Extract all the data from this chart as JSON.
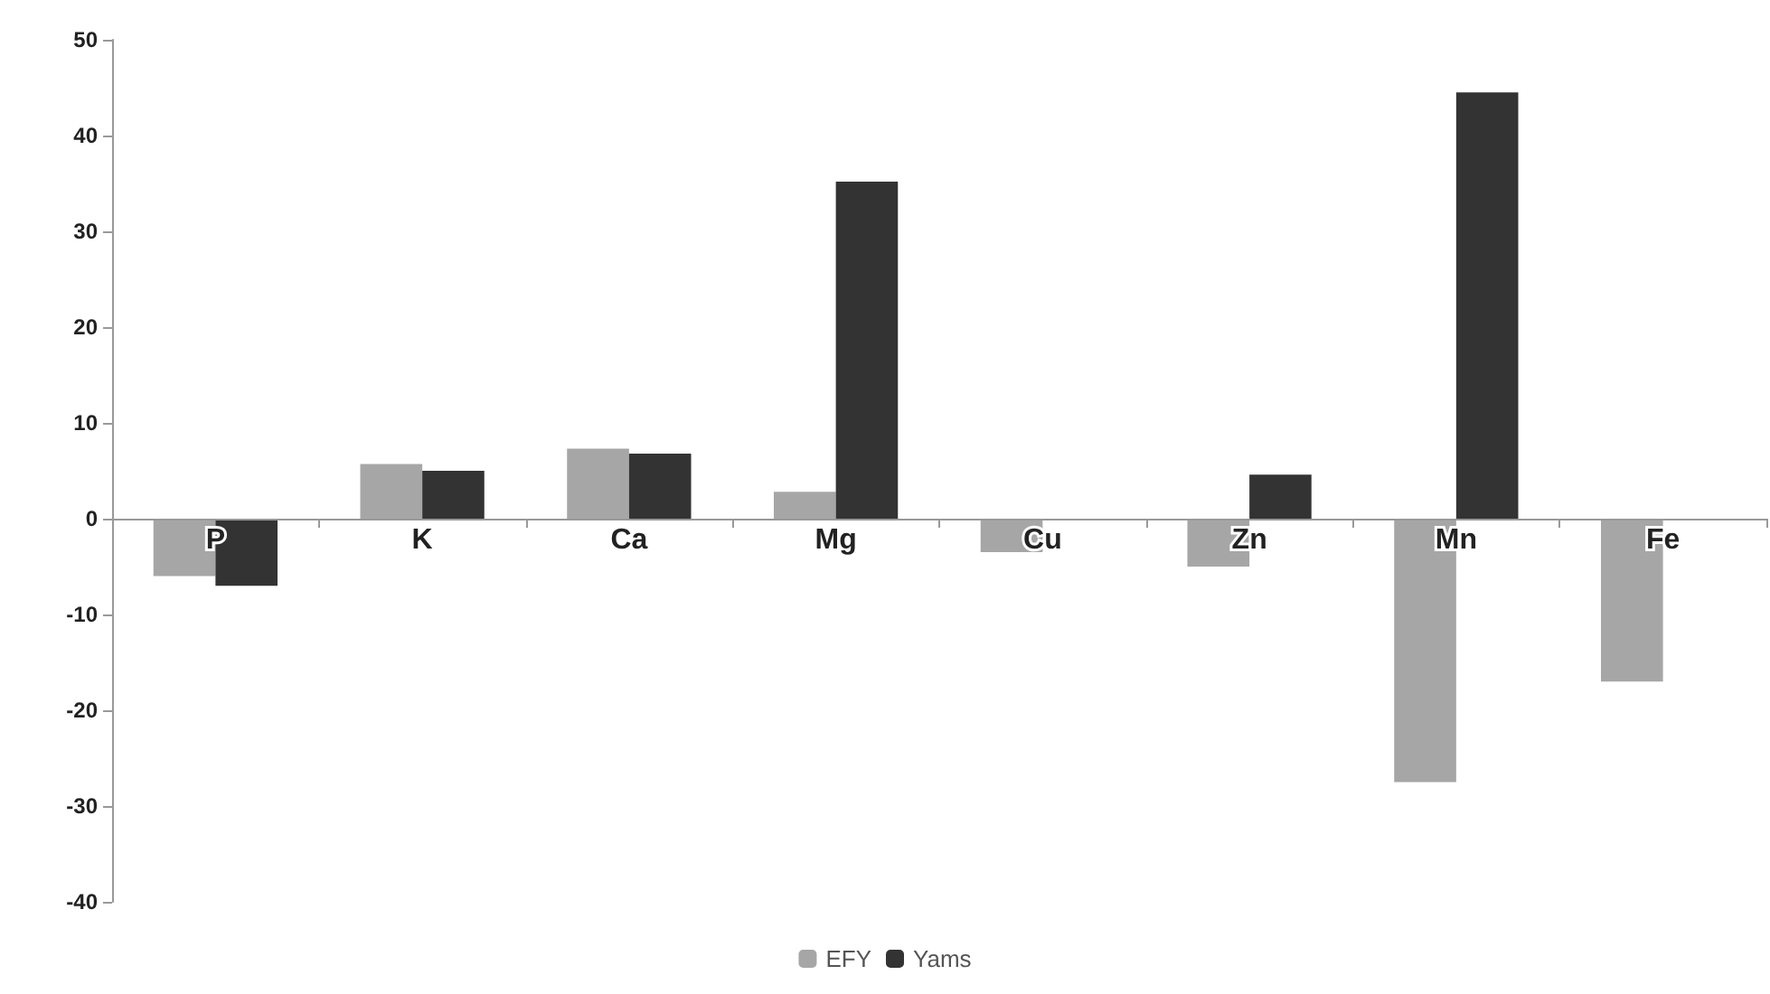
{
  "chart_data": {
    "type": "bar",
    "categories": [
      "P",
      "K",
      "Ca",
      "Mg",
      "Cu",
      "Zn",
      "Mn",
      "Fe"
    ],
    "series": [
      {
        "name": "EFY",
        "color": "#a6a6a6",
        "values": [
          -6,
          5.7,
          7.3,
          2.8,
          -3.5,
          -5,
          -27.5,
          -17
        ]
      },
      {
        "name": "Yams",
        "color": "#333333",
        "values": [
          -7,
          5,
          6.8,
          35.2,
          null,
          4.6,
          44.5,
          null
        ]
      }
    ],
    "ylim": [
      -40,
      50
    ],
    "yticks": [
      -40,
      -30,
      -20,
      -10,
      0,
      10,
      20,
      30,
      40,
      50
    ],
    "grid": false,
    "legend": "bottom"
  }
}
